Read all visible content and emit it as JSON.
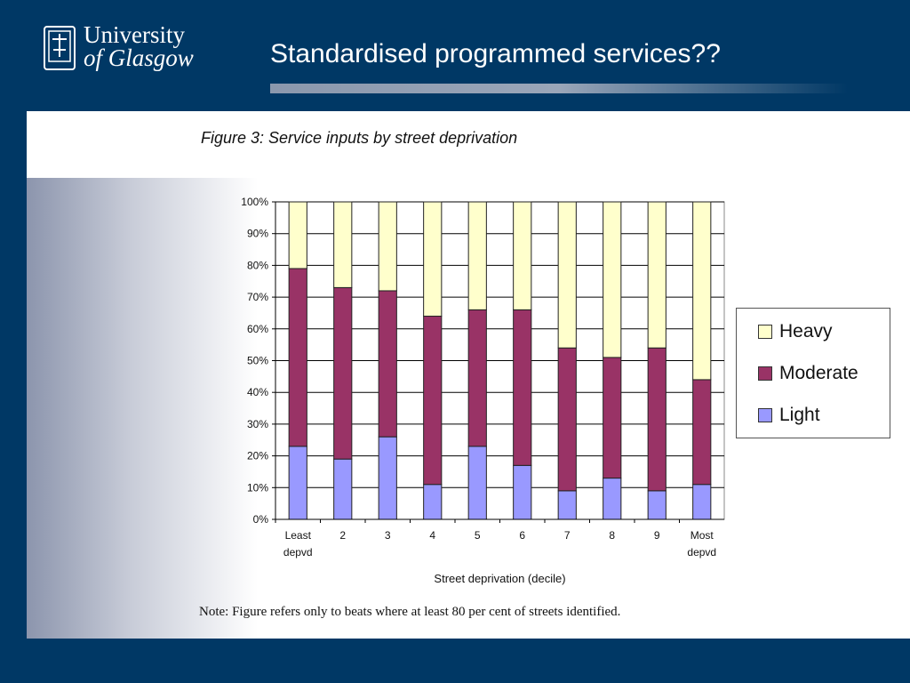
{
  "header": {
    "logo_line1": "University",
    "logo_line2": "of Glasgow",
    "title": "Standardised programmed services??"
  },
  "figure": {
    "caption": "Figure 3: Service inputs by street deprivation",
    "note": "Note: Figure refers only to beats where at least 80 per cent of streets identified."
  },
  "colors": {
    "background": "#003865",
    "Heavy": "#ffffcc",
    "Moderate": "#993366",
    "Light": "#9999ff"
  },
  "chart_data": {
    "type": "bar",
    "stacked": true,
    "categories": [
      "Least\ndepvd",
      "2",
      "3",
      "4",
      "5",
      "6",
      "7",
      "8",
      "9",
      "Most\ndepvd"
    ],
    "series": [
      {
        "name": "Light",
        "values": [
          23,
          19,
          26,
          11,
          23,
          17,
          9,
          13,
          9,
          11
        ]
      },
      {
        "name": "Moderate",
        "values": [
          56,
          54,
          46,
          53,
          43,
          49,
          45,
          38,
          45,
          33
        ]
      },
      {
        "name": "Heavy",
        "values": [
          21,
          27,
          28,
          36,
          34,
          34,
          46,
          49,
          46,
          56
        ]
      }
    ],
    "yticks": [
      "0%",
      "10%",
      "20%",
      "30%",
      "40%",
      "50%",
      "60%",
      "70%",
      "80%",
      "90%",
      "100%"
    ],
    "ylim": [
      0,
      100
    ],
    "xlabel": "Street deprivation (decile)",
    "ylabel": "",
    "legend": [
      "Heavy",
      "Moderate",
      "Light"
    ],
    "legend_position": "right",
    "grid": true
  }
}
